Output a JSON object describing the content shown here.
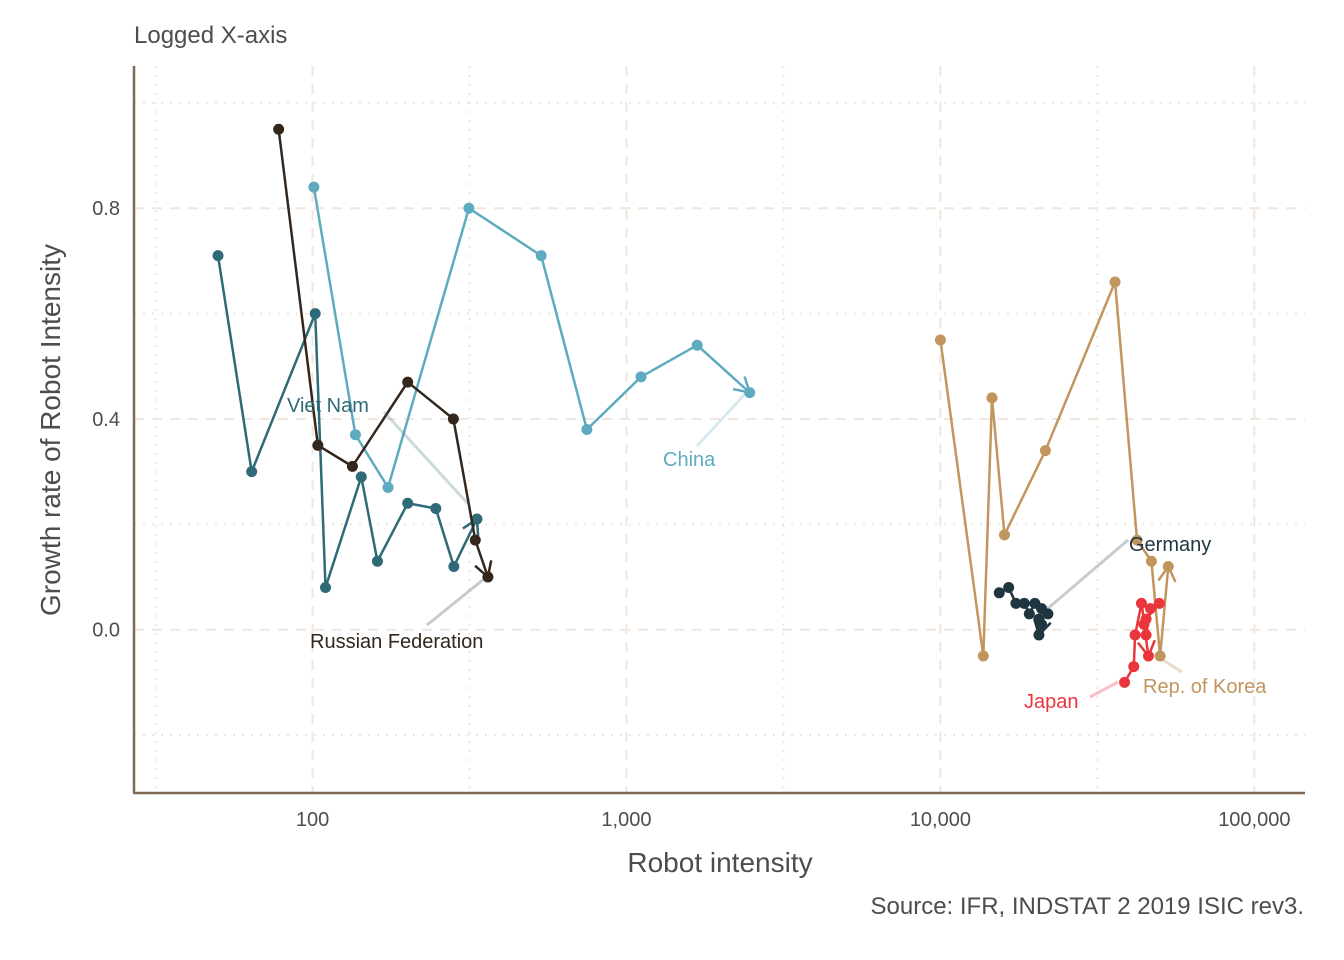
{
  "chart_data": {
    "type": "line",
    "subtitle": "Logged X-axis",
    "xlabel": "Robot intensity",
    "ylabel": "Growth rate of Robot Intensity",
    "caption": "Source: IFR, INDSTAT 2 2019 ISIC rev3.",
    "x_scale": "log10",
    "xlim": [
      27,
      145000
    ],
    "ylim": [
      -0.31,
      1.07
    ],
    "x_ticks": [
      {
        "value": 100,
        "label": "100"
      },
      {
        "value": 1000,
        "label": "1,000"
      },
      {
        "value": 10000,
        "label": "10,000"
      },
      {
        "value": 100000,
        "label": "100,000"
      }
    ],
    "y_ticks": [
      {
        "value": 0.0,
        "label": "0.0"
      },
      {
        "value": 0.4,
        "label": "0.4"
      },
      {
        "value": 0.8,
        "label": "0.8"
      }
    ],
    "grid": "dashed major, dotted minor",
    "legend": "none; series labelled directly",
    "series": [
      {
        "name": "Viet Nam",
        "color": "#2e6a77",
        "points": [
          [
            50,
            0.71
          ],
          [
            64,
            0.3
          ],
          [
            102,
            0.6
          ],
          [
            110,
            0.08
          ],
          [
            143,
            0.29
          ],
          [
            161,
            0.13
          ],
          [
            201,
            0.24
          ],
          [
            247,
            0.23
          ],
          [
            282,
            0.12
          ],
          [
            334,
            0.21
          ]
        ]
      },
      {
        "name": "China",
        "color": "#5eabc0",
        "points": [
          [
            101,
            0.84
          ],
          [
            137,
            0.37
          ],
          [
            174,
            0.27
          ],
          [
            315,
            0.8
          ],
          [
            535,
            0.71
          ],
          [
            748,
            0.38
          ],
          [
            1113,
            0.48
          ],
          [
            1680,
            0.54
          ],
          [
            2470,
            0.45
          ]
        ]
      },
      {
        "name": "Russian Federation",
        "color": "#33271d",
        "points": [
          [
            78,
            0.95
          ],
          [
            104,
            0.35
          ],
          [
            134,
            0.31
          ],
          [
            201,
            0.47
          ],
          [
            281,
            0.4
          ],
          [
            330,
            0.17
          ],
          [
            362,
            0.1
          ]
        ]
      },
      {
        "name": "Rep. of Korea",
        "color": "#c2955f",
        "points": [
          [
            10000,
            0.55
          ],
          [
            13700,
            -0.05
          ],
          [
            14600,
            0.44
          ],
          [
            16000,
            0.18
          ],
          [
            21600,
            0.34
          ],
          [
            36000,
            0.66
          ],
          [
            42300,
            0.17
          ],
          [
            47000,
            0.13
          ],
          [
            50100,
            -0.05
          ],
          [
            53200,
            0.12
          ]
        ]
      },
      {
        "name": "Germany",
        "color": "#1f3540",
        "points": [
          [
            15400,
            0.07
          ],
          [
            16500,
            0.08
          ],
          [
            17400,
            0.05
          ],
          [
            18500,
            0.05
          ],
          [
            19200,
            0.03
          ],
          [
            20000,
            0.05
          ],
          [
            21000,
            0.04
          ],
          [
            22000,
            0.03
          ],
          [
            20600,
            0.02
          ],
          [
            21000,
            0.01
          ],
          [
            20600,
            -0.01
          ]
        ]
      },
      {
        "name": "Japan",
        "color": "#e8363c",
        "points": [
          [
            38600,
            -0.1
          ],
          [
            41300,
            -0.07
          ],
          [
            41700,
            -0.01
          ],
          [
            43700,
            0.05
          ],
          [
            45200,
            -0.01
          ],
          [
            46700,
            0.04
          ],
          [
            49800,
            0.05
          ],
          [
            45200,
            0.02
          ],
          [
            44500,
            0.01
          ],
          [
            46000,
            -0.05
          ]
        ]
      }
    ],
    "series_labels": [
      {
        "name": "Viet Nam",
        "color": "#2e6a77"
      },
      {
        "name": "China",
        "color": "#5eabc0"
      },
      {
        "name": "Russian Federation",
        "color": "#33271d"
      },
      {
        "name": "Germany",
        "color": "#1f3540"
      },
      {
        "name": "Rep. of Korea",
        "color": "#c2955f"
      },
      {
        "name": "Japan",
        "color": "#e8363c"
      }
    ]
  }
}
